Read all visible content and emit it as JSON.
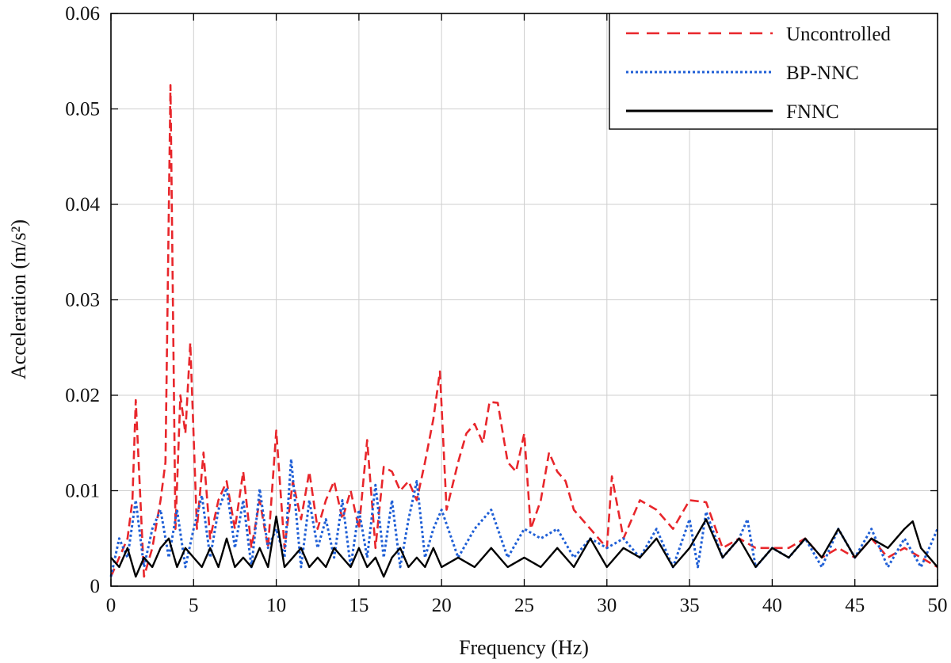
{
  "chart_data": {
    "type": "line",
    "xlabel": "Frequency (Hz)",
    "ylabel": "Acceleration (m/s²)",
    "xlim": [
      0,
      50
    ],
    "ylim": [
      0,
      0.06
    ],
    "x_ticks": [
      "0",
      "5",
      "10",
      "15",
      "20",
      "25",
      "30",
      "35",
      "40",
      "45",
      "50"
    ],
    "y_ticks": [
      "0",
      "0.01",
      "0.02",
      "0.03",
      "0.04",
      "0.05",
      "0.06"
    ],
    "grid": true,
    "legend_position": "top-right",
    "series": [
      {
        "name": "Uncontrolled",
        "color": "#e8262b",
        "style": "dashed",
        "x": [
          0,
          0.5,
          1,
          1.3,
          1.5,
          2,
          2.5,
          3,
          3.3,
          3.6,
          3.9,
          4.2,
          4.5,
          4.8,
          5.2,
          5.6,
          6,
          6.5,
          7,
          7.5,
          8,
          8.5,
          9,
          9.5,
          10,
          10.5,
          11,
          11.5,
          12,
          12.5,
          13,
          13.5,
          14,
          14.5,
          15,
          15.5,
          16,
          16.5,
          17,
          17.5,
          18,
          18.5,
          19,
          19.5,
          19.9,
          20.3,
          21,
          21.5,
          22,
          22.5,
          22.9,
          23.4,
          24,
          24.5,
          25,
          25.4,
          26,
          26.5,
          27,
          27.5,
          28,
          29,
          30,
          30.3,
          31,
          32,
          33,
          34,
          35,
          36,
          37,
          38,
          39,
          40,
          41,
          42,
          43,
          44,
          45,
          46,
          47,
          48,
          49,
          50
        ],
        "y": [
          0.001,
          0.003,
          0.005,
          0.009,
          0.0195,
          0.001,
          0.004,
          0.009,
          0.013,
          0.0525,
          0.006,
          0.02,
          0.016,
          0.0255,
          0.006,
          0.014,
          0.005,
          0.009,
          0.011,
          0.006,
          0.012,
          0.004,
          0.009,
          0.004,
          0.0163,
          0.004,
          0.011,
          0.007,
          0.012,
          0.006,
          0.009,
          0.011,
          0.007,
          0.01,
          0.006,
          0.0153,
          0.004,
          0.0125,
          0.012,
          0.01,
          0.011,
          0.009,
          0.013,
          0.0175,
          0.0225,
          0.008,
          0.013,
          0.016,
          0.017,
          0.015,
          0.0193,
          0.0192,
          0.013,
          0.012,
          0.016,
          0.006,
          0.009,
          0.014,
          0.012,
          0.011,
          0.008,
          0.006,
          0.004,
          0.0115,
          0.005,
          0.009,
          0.008,
          0.006,
          0.009,
          0.0088,
          0.004,
          0.005,
          0.004,
          0.004,
          0.004,
          0.005,
          0.003,
          0.004,
          0.003,
          0.005,
          0.003,
          0.004,
          0.003,
          0.002
        ]
      },
      {
        "name": "BP-NNC",
        "color": "#1f5fd6",
        "style": "dotted",
        "x": [
          0,
          0.5,
          1,
          1.5,
          2,
          2.5,
          3,
          3.5,
          4,
          4.5,
          5,
          5.5,
          6,
          6.5,
          7,
          7.5,
          8,
          8.5,
          9,
          9.5,
          10,
          10.5,
          10.9,
          11.5,
          12,
          12.5,
          13,
          13.5,
          14,
          14.5,
          15,
          15.5,
          16,
          16.5,
          17,
          17.5,
          18,
          18.5,
          19,
          19.5,
          20,
          21,
          22,
          23,
          24,
          25,
          26,
          27,
          28,
          29,
          30,
          31,
          32,
          33,
          34,
          35,
          35.5,
          36,
          37,
          38,
          38.5,
          39,
          40,
          41,
          42,
          43,
          44,
          45,
          46,
          47,
          48,
          49,
          50
        ],
        "y": [
          0.001,
          0.005,
          0.003,
          0.009,
          0.002,
          0.006,
          0.008,
          0.003,
          0.008,
          0.002,
          0.006,
          0.0095,
          0.003,
          0.008,
          0.0103,
          0.004,
          0.009,
          0.002,
          0.0102,
          0.004,
          0.006,
          0.003,
          0.0133,
          0.002,
          0.009,
          0.004,
          0.007,
          0.003,
          0.009,
          0.002,
          0.008,
          0.003,
          0.0106,
          0.003,
          0.009,
          0.002,
          0.007,
          0.011,
          0.003,
          0.006,
          0.008,
          0.003,
          0.006,
          0.008,
          0.003,
          0.006,
          0.005,
          0.006,
          0.003,
          0.005,
          0.004,
          0.005,
          0.003,
          0.006,
          0.002,
          0.007,
          0.002,
          0.0078,
          0.003,
          0.005,
          0.007,
          0.002,
          0.004,
          0.003,
          0.005,
          0.002,
          0.006,
          0.003,
          0.006,
          0.002,
          0.005,
          0.002,
          0.006
        ]
      },
      {
        "name": "FNNC",
        "color": "#000000",
        "style": "solid",
        "x": [
          0,
          0.5,
          1,
          1.5,
          2,
          2.5,
          3,
          3.5,
          4,
          4.5,
          5,
          5.5,
          6,
          6.5,
          7,
          7.5,
          8,
          8.5,
          9,
          9.5,
          10,
          10.5,
          11,
          11.5,
          12,
          12.5,
          13,
          13.5,
          14,
          14.5,
          15,
          15.5,
          16,
          16.5,
          17,
          17.5,
          18,
          18.5,
          19,
          19.5,
          20,
          21,
          22,
          23,
          24,
          25,
          26,
          27,
          28,
          29,
          30,
          31,
          32,
          33,
          34,
          35,
          36,
          37,
          38,
          39,
          40,
          41,
          42,
          43,
          44,
          45,
          46,
          47,
          48,
          48.5,
          49,
          50
        ],
        "y": [
          0.003,
          0.002,
          0.004,
          0.001,
          0.003,
          0.002,
          0.004,
          0.005,
          0.002,
          0.004,
          0.003,
          0.002,
          0.004,
          0.002,
          0.005,
          0.002,
          0.003,
          0.002,
          0.004,
          0.002,
          0.0073,
          0.002,
          0.003,
          0.004,
          0.002,
          0.003,
          0.002,
          0.004,
          0.003,
          0.002,
          0.004,
          0.002,
          0.003,
          0.001,
          0.003,
          0.004,
          0.002,
          0.003,
          0.002,
          0.004,
          0.002,
          0.003,
          0.002,
          0.004,
          0.002,
          0.003,
          0.002,
          0.004,
          0.002,
          0.005,
          0.002,
          0.004,
          0.003,
          0.005,
          0.002,
          0.004,
          0.007,
          0.003,
          0.005,
          0.002,
          0.004,
          0.003,
          0.005,
          0.003,
          0.006,
          0.003,
          0.005,
          0.004,
          0.006,
          0.0068,
          0.004,
          0.002
        ]
      }
    ]
  }
}
